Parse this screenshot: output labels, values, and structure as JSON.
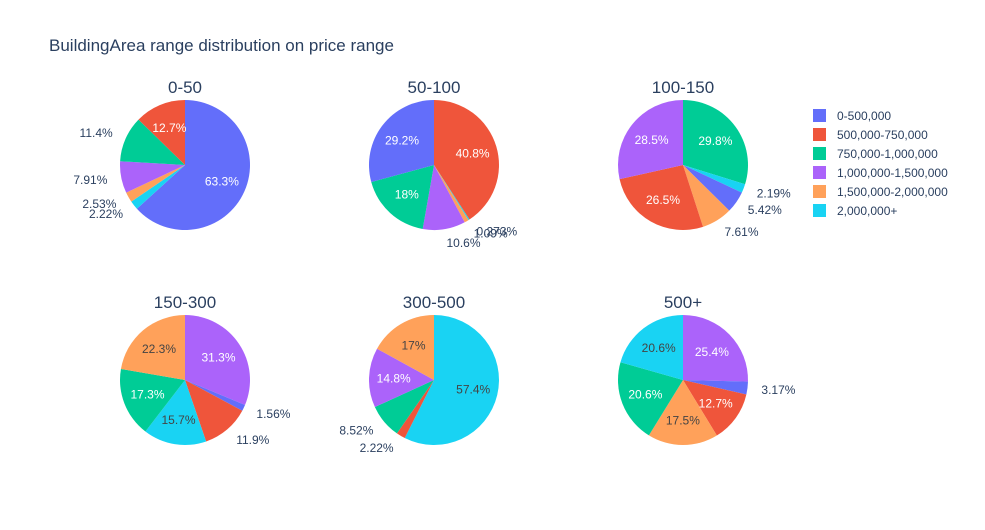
{
  "title": "BuildingArea range distribution on price range",
  "legend": {
    "position": "right",
    "items": [
      {
        "label": "0-500,000",
        "color": "#636efa"
      },
      {
        "label": "500,000-750,000",
        "color": "#EF553B"
      },
      {
        "label": "750,000-1,000,000",
        "color": "#00cc96"
      },
      {
        "label": "1,000,000-1,500,000",
        "color": "#ab63fa"
      },
      {
        "label": "1,500,000-2,000,000",
        "color": "#FFA15A"
      },
      {
        "label": "2,000,000+",
        "color": "#19d3f3"
      }
    ]
  },
  "chart_data": [
    {
      "type": "pie",
      "title": "0-50",
      "slices": [
        {
          "category": "0-500,000",
          "value": 63.3,
          "label": "63.3%"
        },
        {
          "category": "2,000,000+",
          "value": 2.22,
          "label": "2.22%"
        },
        {
          "category": "1,500,000-2,000,000",
          "value": 2.53,
          "label": "2.53%"
        },
        {
          "category": "1,000,000-1,500,000",
          "value": 7.91,
          "label": "7.91%"
        },
        {
          "category": "750,000-1,000,000",
          "value": 11.4,
          "label": "11.4%"
        },
        {
          "category": "500,000-750,000",
          "value": 12.7,
          "label": "12.7%"
        }
      ]
    },
    {
      "type": "pie",
      "title": "50-100",
      "slices": [
        {
          "category": "500,000-750,000",
          "value": 40.8,
          "label": "40.8%"
        },
        {
          "category": "2,000,000+",
          "value": 0.273,
          "label": "0.273%"
        },
        {
          "category": "1,500,000-2,000,000",
          "value": 1.09,
          "label": "1.09%"
        },
        {
          "category": "1,000,000-1,500,000",
          "value": 10.6,
          "label": "10.6%"
        },
        {
          "category": "750,000-1,000,000",
          "value": 18,
          "label": "18%"
        },
        {
          "category": "0-500,000",
          "value": 29.2,
          "label": "29.2%"
        }
      ]
    },
    {
      "type": "pie",
      "title": "100-150",
      "slices": [
        {
          "category": "750,000-1,000,000",
          "value": 29.8,
          "label": "29.8%"
        },
        {
          "category": "2,000,000+",
          "value": 2.19,
          "label": "2.19%"
        },
        {
          "category": "0-500,000",
          "value": 5.42,
          "label": "5.42%"
        },
        {
          "category": "1,500,000-2,000,000",
          "value": 7.61,
          "label": "7.61%"
        },
        {
          "category": "500,000-750,000",
          "value": 26.5,
          "label": "26.5%"
        },
        {
          "category": "1,000,000-1,500,000",
          "value": 28.5,
          "label": "28.5%"
        }
      ]
    },
    {
      "type": "pie",
      "title": "150-300",
      "slices": [
        {
          "category": "1,000,000-1,500,000",
          "value": 31.3,
          "label": "31.3%"
        },
        {
          "category": "0-500,000",
          "value": 1.56,
          "label": "1.56%"
        },
        {
          "category": "500,000-750,000",
          "value": 11.9,
          "label": "11.9%"
        },
        {
          "category": "2,000,000+",
          "value": 15.7,
          "label": "15.7%"
        },
        {
          "category": "750,000-1,000,000",
          "value": 17.3,
          "label": "17.3%"
        },
        {
          "category": "1,500,000-2,000,000",
          "value": 22.3,
          "label": "22.3%"
        }
      ]
    },
    {
      "type": "pie",
      "title": "300-500",
      "slices": [
        {
          "category": "2,000,000+",
          "value": 57.4,
          "label": "57.4%"
        },
        {
          "category": "500,000-750,000",
          "value": 2.22,
          "label": "2.22%"
        },
        {
          "category": "750,000-1,000,000",
          "value": 8.52,
          "label": "8.52%"
        },
        {
          "category": "1,000,000-1,500,000",
          "value": 14.8,
          "label": "14.8%"
        },
        {
          "category": "1,500,000-2,000,000",
          "value": 17,
          "label": "17%"
        }
      ]
    },
    {
      "type": "pie",
      "title": "500+",
      "slices": [
        {
          "category": "1,000,000-1,500,000",
          "value": 25.4,
          "label": "25.4%"
        },
        {
          "category": "0-500,000",
          "value": 3.17,
          "label": "3.17%"
        },
        {
          "category": "500,000-750,000",
          "value": 12.7,
          "label": "12.7%"
        },
        {
          "category": "1,500,000-2,000,000",
          "value": 17.5,
          "label": "17.5%"
        },
        {
          "category": "750,000-1,000,000",
          "value": 20.6,
          "label": "20.6%"
        },
        {
          "category": "2,000,000+",
          "value": 20.6,
          "label": "20.6%"
        }
      ]
    }
  ]
}
